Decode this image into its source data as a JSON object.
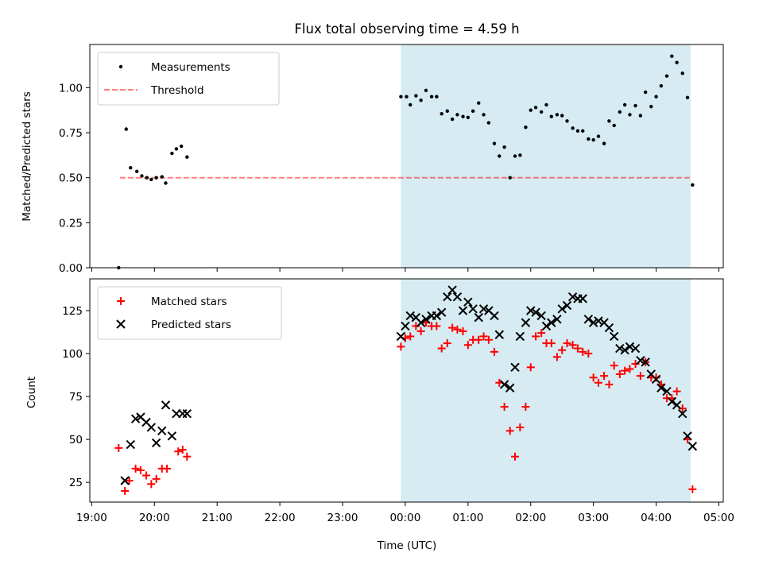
{
  "chart_data": [
    {
      "type": "scatter",
      "title": "Flux total observing time = 4.59 h",
      "ylabel": "Matched/Predicted stars",
      "xlabel": "",
      "xlim": [
        18.97,
        29.07
      ],
      "ylim": [
        0.0,
        1.24
      ],
      "yticks": [
        "0.00",
        "0.25",
        "0.50",
        "0.75",
        "1.00"
      ],
      "yticks_values": [
        0.0,
        0.25,
        0.5,
        0.75,
        1.0
      ],
      "legend_position": "top-left",
      "shaded_span": [
        23.93,
        28.55
      ],
      "shaded_color": "#add8e6",
      "threshold": {
        "name": "Threshold",
        "y": 0.5,
        "x_range": [
          19.45,
          28.55
        ],
        "color": "#ff0000"
      },
      "series": [
        {
          "name": "Measurements",
          "marker": "dot",
          "color": "#000000",
          "x": [
            19.43,
            19.55,
            19.62,
            19.72,
            19.8,
            19.88,
            19.95,
            20.03,
            20.12,
            20.18,
            20.28,
            20.35,
            20.43,
            20.52,
            23.93,
            24.02,
            24.08,
            24.17,
            24.25,
            24.33,
            24.42,
            24.5,
            24.58,
            24.67,
            24.75,
            24.83,
            24.92,
            25.0,
            25.08,
            25.17,
            25.25,
            25.33,
            25.42,
            25.5,
            25.58,
            25.67,
            25.75,
            25.83,
            25.92,
            26.0,
            26.08,
            26.17,
            26.25,
            26.33,
            26.42,
            26.5,
            26.58,
            26.67,
            26.75,
            26.83,
            26.92,
            27.0,
            27.08,
            27.17,
            27.25,
            27.33,
            27.42,
            27.5,
            27.58,
            27.67,
            27.75,
            27.83,
            27.92,
            28.0,
            28.08,
            28.17,
            28.25,
            28.33,
            28.42,
            28.5,
            28.58
          ],
          "y": [
            0.0,
            0.77,
            0.555,
            0.535,
            0.51,
            0.5,
            0.49,
            0.5,
            0.505,
            0.47,
            0.635,
            0.66,
            0.675,
            0.615,
            0.95,
            0.95,
            0.905,
            0.955,
            0.93,
            0.985,
            0.95,
            0.95,
            0.855,
            0.87,
            0.825,
            0.85,
            0.84,
            0.835,
            0.87,
            0.915,
            0.85,
            0.805,
            0.69,
            0.62,
            0.67,
            0.5,
            0.62,
            0.625,
            0.78,
            0.875,
            0.89,
            0.865,
            0.905,
            0.84,
            0.85,
            0.845,
            0.815,
            0.775,
            0.76,
            0.76,
            0.715,
            0.71,
            0.73,
            0.69,
            0.815,
            0.79,
            0.865,
            0.905,
            0.85,
            0.9,
            0.845,
            0.975,
            0.895,
            0.95,
            1.01,
            1.065,
            1.175,
            1.14,
            1.08,
            0.945,
            0.46
          ]
        }
      ]
    },
    {
      "type": "scatter",
      "title": "",
      "ylabel": "Count",
      "xlabel": "Time (UTC)",
      "xlim": [
        18.97,
        29.07
      ],
      "ylim": [
        13.5,
        143.5
      ],
      "yticks": [
        "25",
        "50",
        "75",
        "100",
        "125"
      ],
      "yticks_values": [
        25,
        50,
        75,
        100,
        125
      ],
      "xticks": [
        "19:00",
        "20:00",
        "21:00",
        "22:00",
        "23:00",
        "00:00",
        "01:00",
        "02:00",
        "03:00",
        "04:00",
        "05:00"
      ],
      "xticks_values": [
        19,
        20,
        21,
        22,
        23,
        24,
        25,
        26,
        27,
        28,
        29
      ],
      "legend_position": "top-left",
      "shaded_span": [
        23.93,
        28.55
      ],
      "shaded_color": "#add8e6",
      "series": [
        {
          "name": "Matched stars",
          "marker": "plus",
          "color": "#ff0000",
          "x": [
            19.43,
            19.53,
            19.6,
            19.7,
            19.78,
            19.87,
            19.95,
            20.03,
            20.12,
            20.2,
            20.38,
            20.45,
            20.52,
            23.93,
            24.0,
            24.08,
            24.17,
            24.25,
            24.33,
            24.42,
            24.5,
            24.58,
            24.67,
            24.75,
            24.83,
            24.92,
            25.0,
            25.08,
            25.17,
            25.25,
            25.33,
            25.42,
            25.5,
            25.58,
            25.67,
            25.75,
            25.83,
            25.92,
            26.0,
            26.08,
            26.17,
            26.25,
            26.33,
            26.42,
            26.5,
            26.58,
            26.67,
            26.75,
            26.83,
            26.92,
            27.0,
            27.08,
            27.17,
            27.25,
            27.33,
            27.42,
            27.5,
            27.58,
            27.67,
            27.75,
            27.83,
            27.92,
            28.0,
            28.08,
            28.17,
            28.25,
            28.33,
            28.42,
            28.5,
            28.58
          ],
          "y": [
            45,
            20,
            26,
            33,
            32,
            29,
            24,
            27,
            33,
            33,
            43,
            44,
            40,
            104,
            109,
            110,
            116,
            113,
            118,
            116,
            116,
            103,
            106,
            115,
            114,
            113,
            105,
            108,
            108,
            110,
            108,
            101,
            83,
            69,
            55,
            40,
            57,
            69,
            92,
            110,
            112,
            106,
            106,
            98,
            102,
            106,
            105,
            103,
            101,
            100,
            86,
            83,
            87,
            82,
            93,
            88,
            90,
            91,
            94,
            87,
            95,
            86,
            86,
            82,
            74,
            74,
            78,
            68,
            50,
            21
          ]
        },
        {
          "name": "Predicted stars",
          "marker": "x",
          "color": "#000000",
          "x": [
            19.53,
            19.62,
            19.7,
            19.78,
            19.87,
            19.95,
            20.03,
            20.12,
            20.18,
            20.28,
            20.35,
            20.45,
            20.52,
            23.93,
            24.0,
            24.08,
            24.17,
            24.25,
            24.33,
            24.42,
            24.5,
            24.58,
            24.67,
            24.75,
            24.83,
            24.92,
            25.0,
            25.08,
            25.17,
            25.25,
            25.33,
            25.42,
            25.5,
            25.58,
            25.67,
            25.75,
            25.83,
            25.92,
            26.0,
            26.08,
            26.17,
            26.25,
            26.33,
            26.42,
            26.5,
            26.58,
            26.67,
            26.75,
            26.83,
            26.92,
            27.0,
            27.08,
            27.17,
            27.25,
            27.33,
            27.42,
            27.5,
            27.58,
            27.67,
            27.75,
            27.83,
            27.92,
            28.0,
            28.08,
            28.17,
            28.25,
            28.33,
            28.42,
            28.5,
            28.58
          ],
          "y": [
            26,
            47,
            62,
            63,
            60,
            57,
            48,
            55,
            70,
            52,
            65,
            65,
            65,
            110,
            116,
            122,
            121,
            118,
            120,
            122,
            122,
            124,
            133,
            137,
            133,
            125,
            130,
            126,
            121,
            126,
            125,
            122,
            111,
            82,
            80,
            92,
            110,
            118,
            125,
            124,
            122,
            116,
            118,
            120,
            126,
            128,
            133,
            132,
            132,
            120,
            118,
            119,
            118,
            115,
            110,
            103,
            102,
            104,
            103,
            96,
            95,
            88,
            85,
            80,
            78,
            72,
            70,
            65,
            52,
            46
          ]
        }
      ]
    }
  ]
}
